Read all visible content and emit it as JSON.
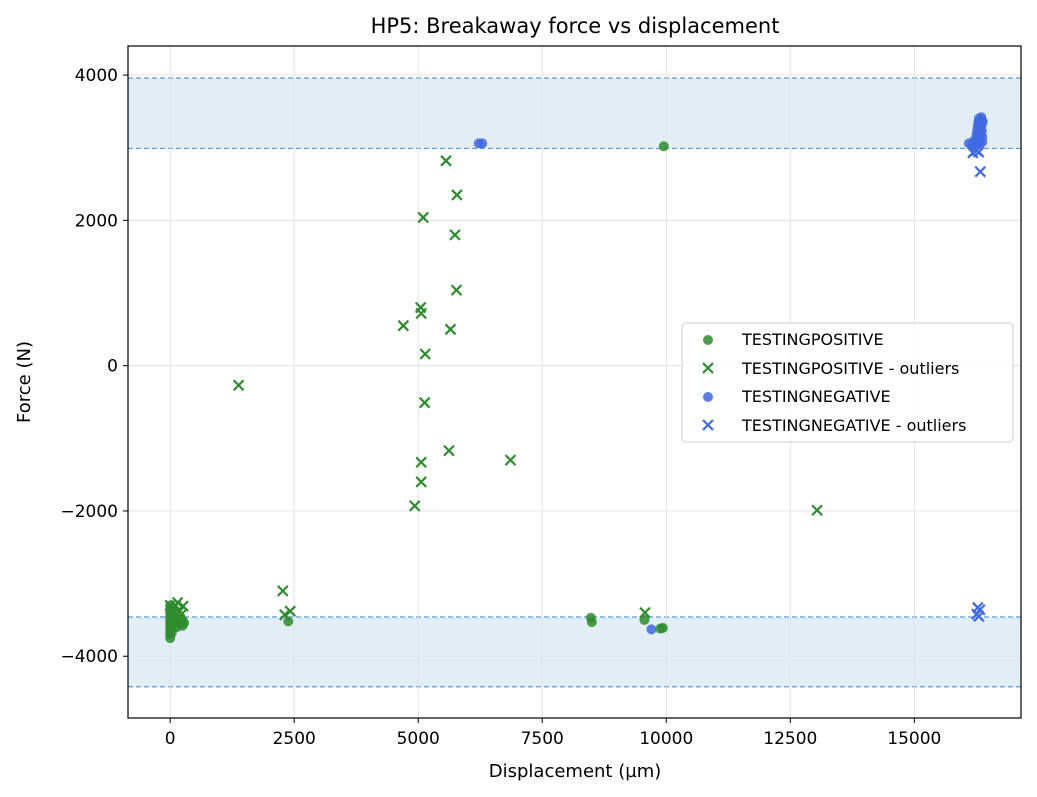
{
  "chart_data": {
    "type": "scatter",
    "title": "HP5: Breakaway force vs displacement",
    "xlabel": "Displacement (µm)",
    "ylabel": "Force (N)",
    "xlim": [
      -850,
      17150
    ],
    "ylim": [
      -4850,
      4400
    ],
    "xticks": [
      0,
      2500,
      5000,
      7500,
      10000,
      12500,
      15000
    ],
    "xtick_labels": [
      "0",
      "2500",
      "5000",
      "7500",
      "10000",
      "12500",
      "15000"
    ],
    "yticks": [
      -4000,
      -2000,
      0,
      2000,
      4000
    ],
    "ytick_labels": [
      "−4000",
      "−2000",
      "0",
      "2000",
      "4000"
    ],
    "grid": true,
    "legend_position": "center-right",
    "bands": [
      {
        "y_low": 2990,
        "y_high": 3960,
        "color": "#d6e6f2"
      },
      {
        "y_low": -4420,
        "y_high": -3460,
        "color": "#d6e6f2"
      }
    ],
    "series": [
      {
        "name": "TESTINGPOSITIVE",
        "marker": "circle",
        "color": "#2e8b2e",
        "points": [
          [
            0,
            -3300
          ],
          [
            0,
            -3350
          ],
          [
            0,
            -3400
          ],
          [
            0,
            -3450
          ],
          [
            0,
            -3500
          ],
          [
            0,
            -3550
          ],
          [
            0,
            -3600
          ],
          [
            0,
            -3650
          ],
          [
            0,
            -3700
          ],
          [
            0,
            -3750
          ],
          [
            20,
            -3420
          ],
          [
            20,
            -3520
          ],
          [
            20,
            -3620
          ],
          [
            30,
            -3680
          ],
          [
            40,
            -3580
          ],
          [
            50,
            -3480
          ],
          [
            60,
            -3380
          ],
          [
            80,
            -3550
          ],
          [
            100,
            -3500
          ],
          [
            130,
            -3600
          ],
          [
            160,
            -3480
          ],
          [
            200,
            -3560
          ],
          [
            230,
            -3520
          ],
          [
            250,
            -3580
          ],
          [
            280,
            -3540
          ],
          [
            2380,
            -3520
          ],
          [
            8480,
            -3470
          ],
          [
            8500,
            -3530
          ],
          [
            9560,
            -3500
          ],
          [
            9880,
            -3620
          ],
          [
            9930,
            -3610
          ],
          [
            9950,
            3020
          ]
        ]
      },
      {
        "name": "TESTINGPOSITIVE - outliers",
        "marker": "x",
        "color": "#2e8b2e",
        "points": [
          [
            0,
            -3300
          ],
          [
            30,
            -3360
          ],
          [
            60,
            -3400
          ],
          [
            80,
            -3500
          ],
          [
            110,
            -3300
          ],
          [
            150,
            -3260
          ],
          [
            190,
            -3380
          ],
          [
            230,
            -3420
          ],
          [
            260,
            -3310
          ],
          [
            1380,
            -270
          ],
          [
            2270,
            -3100
          ],
          [
            2310,
            -3430
          ],
          [
            2420,
            -3380
          ],
          [
            4700,
            550
          ],
          [
            4930,
            -1930
          ],
          [
            5050,
            800
          ],
          [
            5060,
            720
          ],
          [
            5060,
            -1330
          ],
          [
            5060,
            -1600
          ],
          [
            5100,
            2040
          ],
          [
            5130,
            -510
          ],
          [
            5140,
            160
          ],
          [
            5560,
            2820
          ],
          [
            5620,
            -1170
          ],
          [
            5650,
            500
          ],
          [
            5740,
            1800
          ],
          [
            5770,
            1040
          ],
          [
            5780,
            2350
          ],
          [
            6860,
            -1300
          ],
          [
            9570,
            -3400
          ],
          [
            13040,
            -1990
          ]
        ]
      },
      {
        "name": "TESTINGNEGATIVE",
        "marker": "circle",
        "color": "#4169e1",
        "points": [
          [
            6220,
            3060
          ],
          [
            6290,
            3060
          ],
          [
            9700,
            -3630
          ],
          [
            16100,
            3060
          ],
          [
            16160,
            3040
          ],
          [
            16200,
            3090
          ],
          [
            16220,
            3010
          ],
          [
            16250,
            3150
          ],
          [
            16260,
            3200
          ],
          [
            16270,
            3250
          ],
          [
            16280,
            3300
          ],
          [
            16290,
            3350
          ],
          [
            16300,
            3400
          ],
          [
            16310,
            3120
          ],
          [
            16320,
            3060
          ],
          [
            16330,
            3180
          ],
          [
            16340,
            3280
          ],
          [
            16350,
            3380
          ],
          [
            16350,
            3420
          ],
          [
            16360,
            3230
          ],
          [
            16360,
            3320
          ],
          [
            16370,
            3150
          ],
          [
            16370,
            3080
          ],
          [
            16380,
            3360
          ],
          [
            16240,
            3030
          ],
          [
            16300,
            3100
          ],
          [
            16330,
            3250
          ]
        ]
      },
      {
        "name": "TESTINGNEGATIVE - outliers",
        "marker": "x",
        "color": "#4169e1",
        "points": [
          [
            16180,
            2930
          ],
          [
            16250,
            2960
          ],
          [
            16300,
            2940
          ],
          [
            16330,
            2670
          ],
          [
            16260,
            -3420
          ],
          [
            16280,
            -3330
          ],
          [
            16300,
            -3450
          ],
          [
            16320,
            -3360
          ]
        ]
      }
    ]
  }
}
